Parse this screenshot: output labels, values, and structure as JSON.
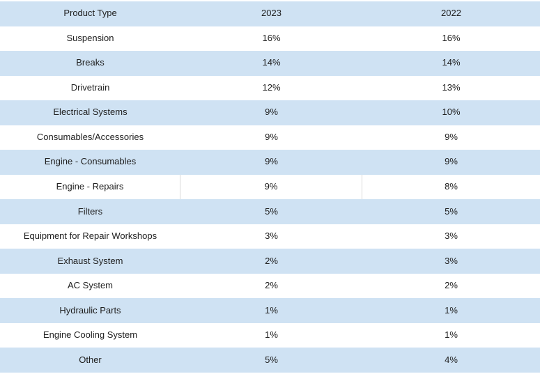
{
  "table": {
    "columns": [
      "Product Type",
      "2023",
      "2022"
    ],
    "rows": [
      {
        "product": "Suspension",
        "y2023": "16%",
        "y2022": "16%"
      },
      {
        "product": "Breaks",
        "y2023": "14%",
        "y2022": "14%"
      },
      {
        "product": "Drivetrain",
        "y2023": "12%",
        "y2022": "13%"
      },
      {
        "product": "Electrical Systems",
        "y2023": "9%",
        "y2022": "10%"
      },
      {
        "product": "Consumables/Accessories",
        "y2023": "9%",
        "y2022": "9%"
      },
      {
        "product": "Engine - Consumables",
        "y2023": "9%",
        "y2022": "9%"
      },
      {
        "product": "Engine - Repairs",
        "y2023": "9%",
        "y2022": "8%"
      },
      {
        "product": "Filters",
        "y2023": "5%",
        "y2022": "5%"
      },
      {
        "product": "Equipment for Repair Workshops",
        "y2023": "3%",
        "y2022": "3%"
      },
      {
        "product": "Exhaust System",
        "y2023": "2%",
        "y2022": "3%"
      },
      {
        "product": "AC System",
        "y2023": "2%",
        "y2022": "2%"
      },
      {
        "product": "Hydraulic Parts",
        "y2023": "1%",
        "y2022": "1%"
      },
      {
        "product": "Engine Cooling System",
        "y2023": "1%",
        "y2022": "1%"
      },
      {
        "product": "Other",
        "y2023": "5%",
        "y2022": "4%"
      }
    ]
  },
  "colors": {
    "row_highlight": "#cfe2f3",
    "row_plain": "#ffffff",
    "cell_border": "#d9d9d9",
    "text": "#202020"
  },
  "chart_data": {
    "type": "table",
    "title": "",
    "columns": [
      "Product Type",
      "2023",
      "2022"
    ],
    "categories": [
      "Suspension",
      "Breaks",
      "Drivetrain",
      "Electrical Systems",
      "Consumables/Accessories",
      "Engine - Consumables",
      "Engine - Repairs",
      "Filters",
      "Equipment for Repair Workshops",
      "Exhaust System",
      "AC System",
      "Hydraulic Parts",
      "Engine Cooling System",
      "Other"
    ],
    "series": [
      {
        "name": "2023",
        "values": [
          16,
          14,
          12,
          9,
          9,
          9,
          9,
          5,
          3,
          2,
          2,
          1,
          1,
          5
        ],
        "unit": "%"
      },
      {
        "name": "2022",
        "values": [
          16,
          14,
          13,
          10,
          9,
          9,
          8,
          5,
          3,
          3,
          2,
          1,
          1,
          4
        ],
        "unit": "%"
      }
    ]
  }
}
